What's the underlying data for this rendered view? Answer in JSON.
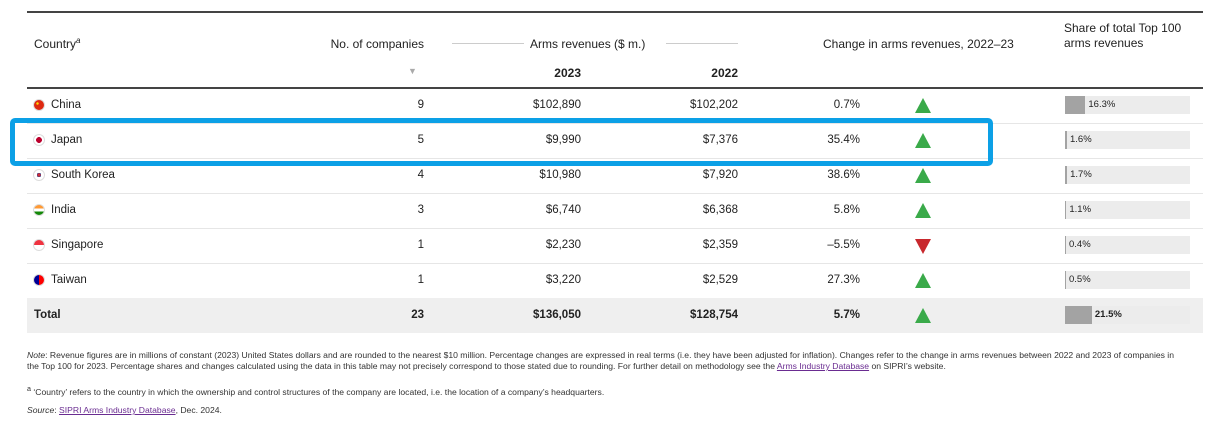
{
  "header": {
    "country": "Country",
    "country_sup": "a",
    "companies": "No. of companies",
    "sort_icon": "▼",
    "revenues": "Arms revenues ($ m.)",
    "y2023": "2023",
    "y2022": "2022",
    "change": "Change in arms revenues, 2022–23",
    "share": "Share of total Top 100 arms revenues"
  },
  "rows": [
    {
      "country": "China",
      "companies": "9",
      "rev2023": "$102,890",
      "rev2022": "$102,202",
      "change": "0.7%",
      "direction": "up",
      "share": "16.3%",
      "share_value": 16.3
    },
    {
      "country": "Japan",
      "companies": "5",
      "rev2023": "$9,990",
      "rev2022": "$7,376",
      "change": "35.4%",
      "direction": "up",
      "share": "1.6%",
      "share_value": 1.6
    },
    {
      "country": "South Korea",
      "companies": "4",
      "rev2023": "$10,980",
      "rev2022": "$7,920",
      "change": "38.6%",
      "direction": "up",
      "share": "1.7%",
      "share_value": 1.7
    },
    {
      "country": "India",
      "companies": "3",
      "rev2023": "$6,740",
      "rev2022": "$6,368",
      "change": "5.8%",
      "direction": "up",
      "share": "1.1%",
      "share_value": 1.1
    },
    {
      "country": "Singapore",
      "companies": "1",
      "rev2023": "$2,230",
      "rev2022": "$2,359",
      "change": "–5.5%",
      "direction": "down",
      "share": "0.4%",
      "share_value": 0.4
    },
    {
      "country": "Taiwan",
      "companies": "1",
      "rev2023": "$3,220",
      "rev2022": "$2,529",
      "change": "27.3%",
      "direction": "up",
      "share": "0.5%",
      "share_value": 0.5
    },
    {
      "country": "Total",
      "companies": "23",
      "rev2023": "$136,050",
      "rev2022": "$128,754",
      "change": "5.7%",
      "direction": "up",
      "share": "21.5%",
      "share_value": 21.5
    }
  ],
  "colors": {
    "up": "#3aaa4a",
    "down": "#c8282d",
    "highlight": "#0ca0e6",
    "bar": "#a3a3a3"
  },
  "notes": {
    "note_label": "Note",
    "note_text": ": Revenue figures are in millions of constant (2023) United States dollars and are rounded to the nearest $10 million. Percentage changes are expressed in real terms (i.e. they have been adjusted for inflation). Changes refer to the change in arms revenues between 2022 and 2023 of companies in the Top 100 for 2023. Percentage shares and changes calculated using the data in this table may not precisely correspond to those stated due to rounding. For further detail on methodology see the ",
    "note_link": "Arms Industry Database",
    "note_end": " on SIPRI’s website.",
    "footnote_sup": "a",
    "footnote": " ‘Country’ refers to the country in which the ownership and control structures of the company are located, i.e. the location of a company’s headquarters.",
    "source_label": "Source",
    "source_link": "SIPRI Arms Industry Database",
    "source_end": ", Dec. 2024."
  }
}
